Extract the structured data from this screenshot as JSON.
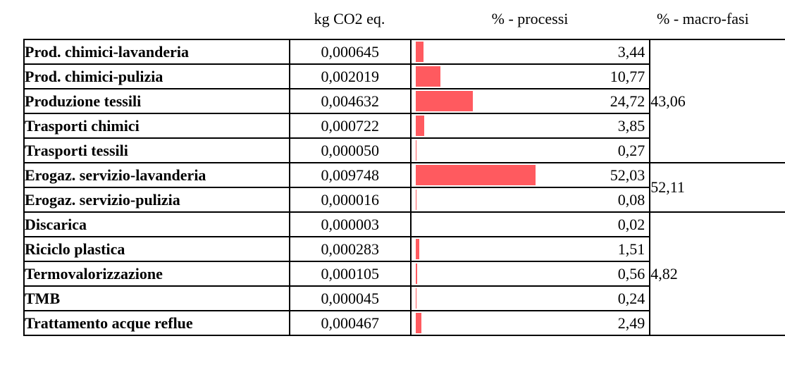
{
  "headers": {
    "kg": "kg CO2 eq.",
    "processi": "% - processi",
    "macro": "% - macro-fasi"
  },
  "bar_color": "#ff5a5f",
  "rows": [
    {
      "name": "Prod. chimici-lavanderia",
      "kg": "0,000645",
      "pct": "3,44",
      "pct_value": 3.44
    },
    {
      "name": "Prod. chimici-pulizia",
      "kg": "0,002019",
      "pct": "10,77",
      "pct_value": 10.77
    },
    {
      "name": "Produzione tessili",
      "kg": "0,004632",
      "pct": "24,72",
      "pct_value": 24.72
    },
    {
      "name": "Trasporti chimici",
      "kg": "0,000722",
      "pct": "3,85",
      "pct_value": 3.85
    },
    {
      "name": "Trasporti tessili",
      "kg": "0,000050",
      "pct": "0,27",
      "pct_value": 0.27
    },
    {
      "name": "Erogaz. servizio-lavanderia",
      "kg": "0,009748",
      "pct": "52,03",
      "pct_value": 52.03
    },
    {
      "name": "Erogaz. servizio-pulizia",
      "kg": "0,000016",
      "pct": "0,08",
      "pct_value": 0.08
    },
    {
      "name": "Discarica",
      "kg": "0,000003",
      "pct": "0,02",
      "pct_value": 0.02
    },
    {
      "name": "Riciclo plastica",
      "kg": "0,000283",
      "pct": "1,51",
      "pct_value": 1.51
    },
    {
      "name": "Termovalorizzazione",
      "kg": "0,000105",
      "pct": "0,56",
      "pct_value": 0.56
    },
    {
      "name": "TMB",
      "kg": "0,000045",
      "pct": "0,24",
      "pct_value": 0.24
    },
    {
      "name": "Trattamento acque reflue",
      "kg": "0,000467",
      "pct": "2,49",
      "pct_value": 2.49
    }
  ],
  "macro_groups": [
    {
      "value": "43,06",
      "rows": 5
    },
    {
      "value": "52,11",
      "rows": 2
    },
    {
      "value": "4,82",
      "rows": 5
    }
  ]
}
